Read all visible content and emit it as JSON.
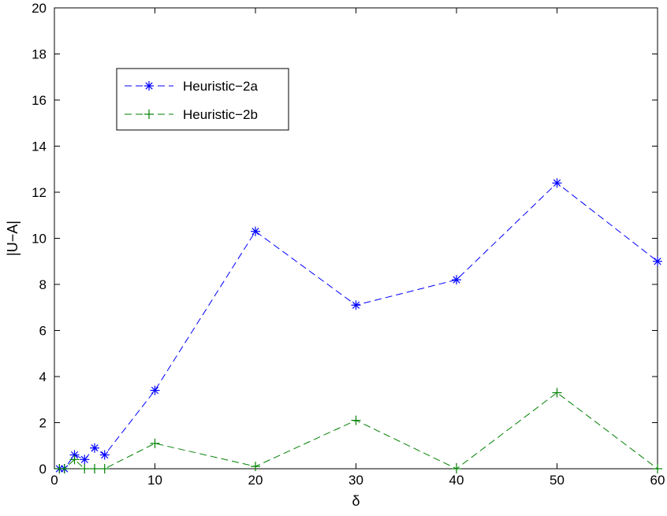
{
  "chart_data": {
    "type": "line",
    "xlabel": "δ",
    "ylabel": "|U−A|",
    "xlim": [
      0,
      60
    ],
    "ylim": [
      0,
      20
    ],
    "xticks": [
      "0",
      "10",
      "20",
      "30",
      "40",
      "50",
      "60"
    ],
    "yticks": [
      "0",
      "2",
      "4",
      "6",
      "8",
      "10",
      "12",
      "14",
      "16",
      "18",
      "20"
    ],
    "grid": false,
    "legend_position": "top-left",
    "series": [
      {
        "name": "Heuristic−2a",
        "color": "#0000ff",
        "marker": "asterisk",
        "line_style": "dashed",
        "x": [
          0.5,
          1,
          2,
          3,
          4,
          5,
          10,
          20,
          30,
          40,
          50,
          60
        ],
        "y": [
          0,
          0,
          0.6,
          0.4,
          0.9,
          0.6,
          3.4,
          10.3,
          7.1,
          8.2,
          12.4,
          9.0
        ]
      },
      {
        "name": "Heuristic−2b",
        "color": "#008000",
        "marker": "plus",
        "line_style": "dashed",
        "x": [
          0.5,
          1,
          2,
          3,
          4,
          5,
          10,
          20,
          30,
          40,
          50,
          60
        ],
        "y": [
          0,
          0,
          0.4,
          0,
          0,
          0,
          1.1,
          0.1,
          2.1,
          0,
          3.3,
          0
        ]
      }
    ]
  }
}
